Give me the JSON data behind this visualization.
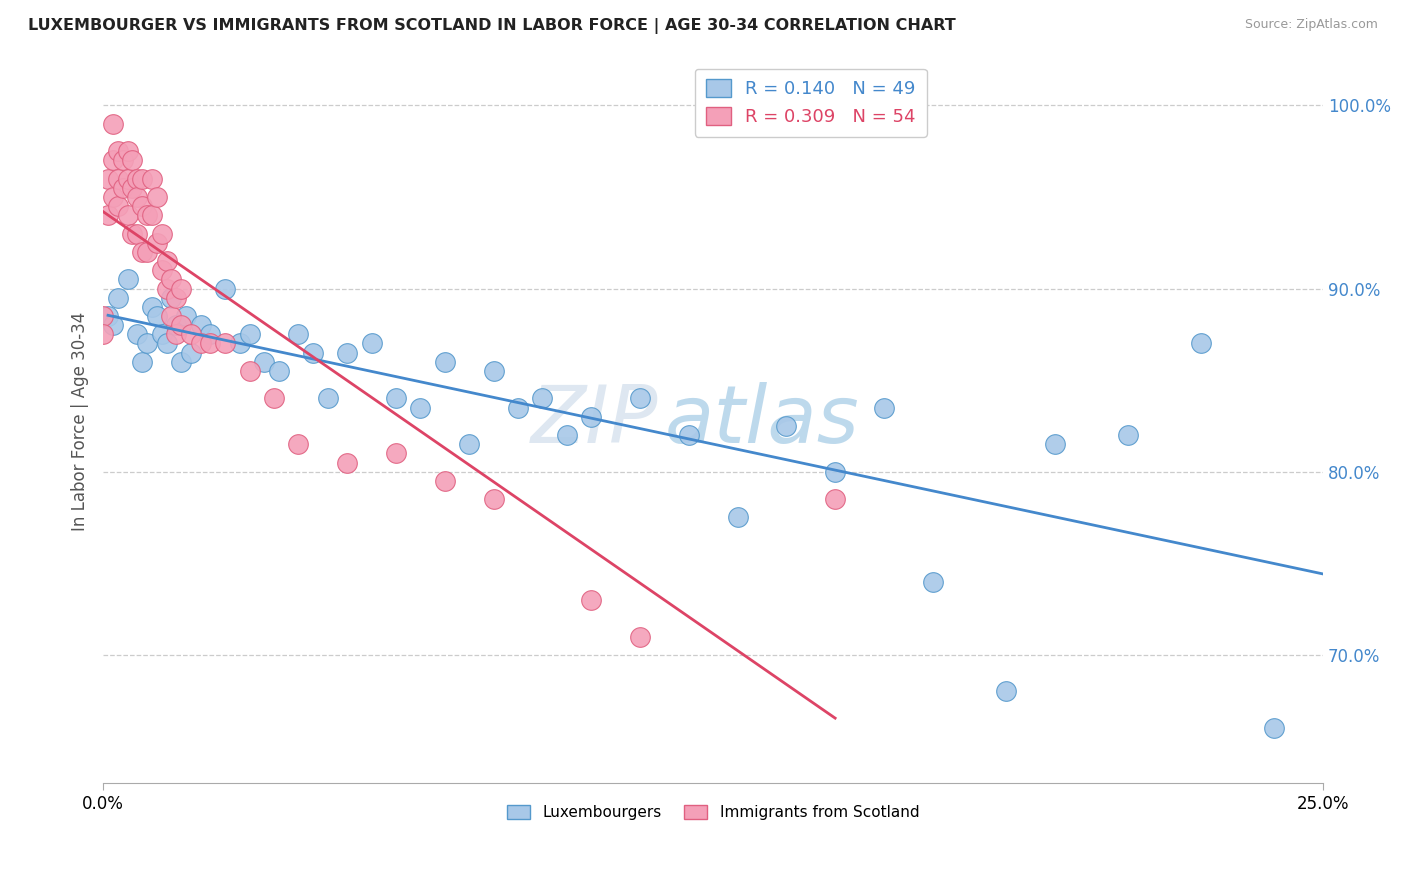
{
  "title": "LUXEMBOURGER VS IMMIGRANTS FROM SCOTLAND IN LABOR FORCE | AGE 30-34 CORRELATION CHART",
  "source_text": "Source: ZipAtlas.com",
  "ylabel": "In Labor Force | Age 30-34",
  "xlim": [
    0.0,
    0.25
  ],
  "ylim": [
    0.63,
    1.025
  ],
  "R_blue": 0.14,
  "N_blue": 49,
  "R_pink": 0.309,
  "N_pink": 54,
  "blue_color": "#a8c8e8",
  "pink_color": "#f4a0b8",
  "blue_edge_color": "#5599cc",
  "pink_edge_color": "#e06080",
  "blue_line_color": "#4488cc",
  "pink_line_color": "#dd4466",
  "legend_blue_label": "Luxembourgers",
  "legend_pink_label": "Immigrants from Scotland",
  "watermark_zip": "ZIP",
  "watermark_atlas": "atlas",
  "blue_scatter_x": [
    0.001,
    0.002,
    0.003,
    0.005,
    0.007,
    0.008,
    0.009,
    0.01,
    0.011,
    0.012,
    0.013,
    0.014,
    0.015,
    0.016,
    0.017,
    0.018,
    0.02,
    0.022,
    0.025,
    0.028,
    0.03,
    0.033,
    0.036,
    0.04,
    0.043,
    0.046,
    0.05,
    0.055,
    0.06,
    0.065,
    0.07,
    0.075,
    0.08,
    0.085,
    0.09,
    0.095,
    0.1,
    0.11,
    0.12,
    0.13,
    0.14,
    0.15,
    0.16,
    0.17,
    0.185,
    0.195,
    0.21,
    0.225,
    0.24
  ],
  "blue_scatter_y": [
    0.885,
    0.88,
    0.895,
    0.905,
    0.875,
    0.86,
    0.87,
    0.89,
    0.885,
    0.875,
    0.87,
    0.895,
    0.88,
    0.86,
    0.885,
    0.865,
    0.88,
    0.875,
    0.9,
    0.87,
    0.875,
    0.86,
    0.855,
    0.875,
    0.865,
    0.84,
    0.865,
    0.87,
    0.84,
    0.835,
    0.86,
    0.815,
    0.855,
    0.835,
    0.84,
    0.82,
    0.83,
    0.84,
    0.82,
    0.775,
    0.825,
    0.8,
    0.835,
    0.74,
    0.68,
    0.815,
    0.82,
    0.87,
    0.66
  ],
  "pink_scatter_x": [
    0.0,
    0.0,
    0.001,
    0.001,
    0.002,
    0.002,
    0.002,
    0.003,
    0.003,
    0.003,
    0.004,
    0.004,
    0.005,
    0.005,
    0.005,
    0.006,
    0.006,
    0.006,
    0.007,
    0.007,
    0.007,
    0.008,
    0.008,
    0.008,
    0.009,
    0.009,
    0.01,
    0.01,
    0.011,
    0.011,
    0.012,
    0.012,
    0.013,
    0.013,
    0.014,
    0.014,
    0.015,
    0.015,
    0.016,
    0.016,
    0.018,
    0.02,
    0.022,
    0.025,
    0.03,
    0.035,
    0.04,
    0.05,
    0.06,
    0.07,
    0.08,
    0.1,
    0.11,
    0.15
  ],
  "pink_scatter_y": [
    0.885,
    0.875,
    0.96,
    0.94,
    0.99,
    0.97,
    0.95,
    0.975,
    0.96,
    0.945,
    0.97,
    0.955,
    0.975,
    0.96,
    0.94,
    0.97,
    0.955,
    0.93,
    0.96,
    0.95,
    0.93,
    0.96,
    0.945,
    0.92,
    0.94,
    0.92,
    0.96,
    0.94,
    0.95,
    0.925,
    0.93,
    0.91,
    0.915,
    0.9,
    0.905,
    0.885,
    0.895,
    0.875,
    0.9,
    0.88,
    0.875,
    0.87,
    0.87,
    0.87,
    0.855,
    0.84,
    0.815,
    0.805,
    0.81,
    0.795,
    0.785,
    0.73,
    0.71,
    0.785
  ]
}
